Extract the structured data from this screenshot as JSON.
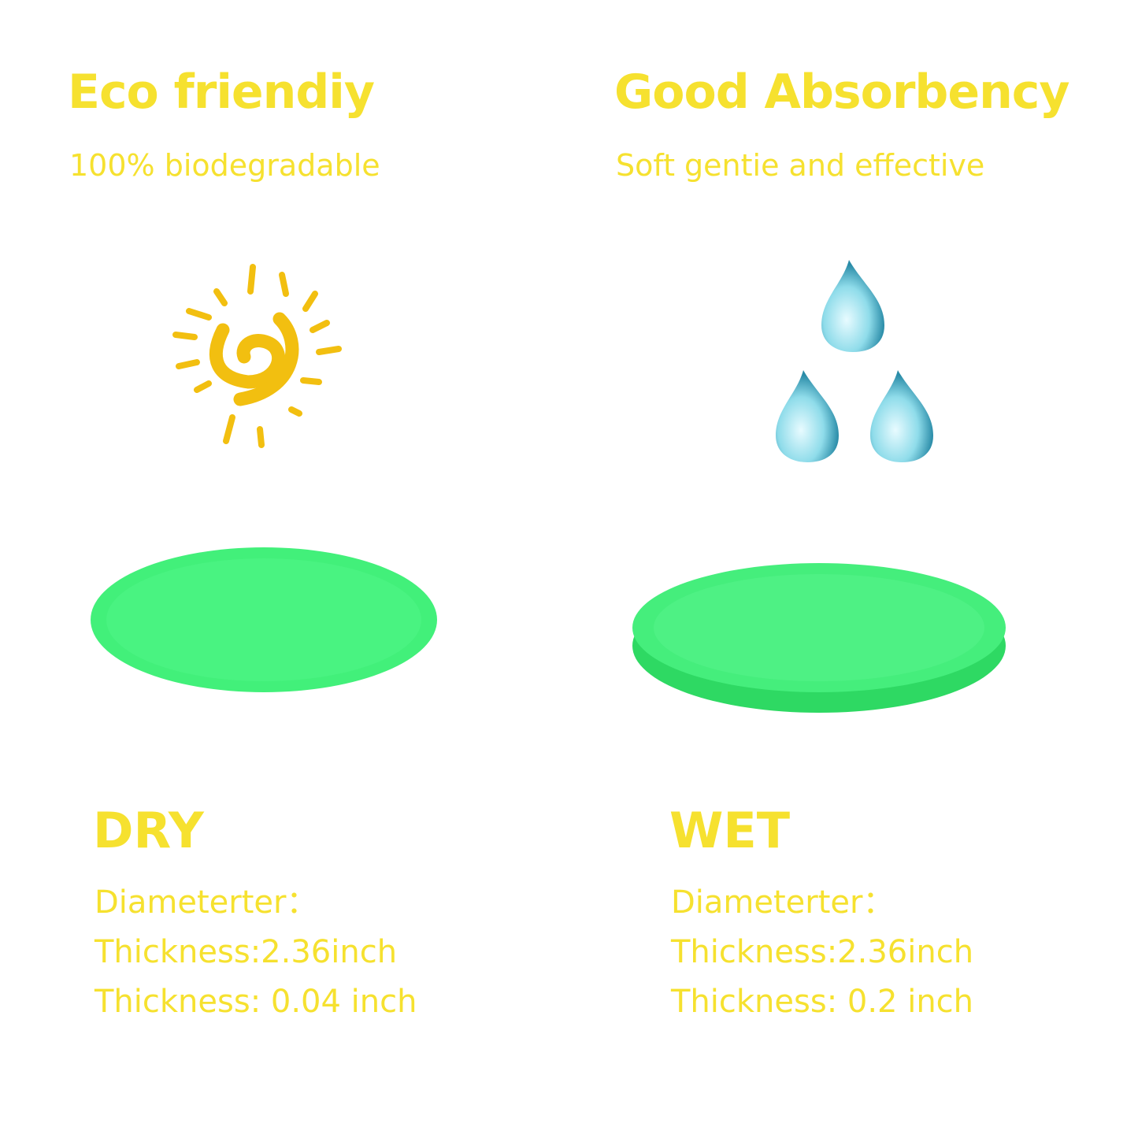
{
  "left": {
    "title": "Eco friendiy",
    "subtitle": "100% biodegradable",
    "icon": "sun-icon",
    "state": "DRY",
    "specs": [
      "Diameterter：",
      "Thickness:2.36inch",
      "Thickness: 0.04 inch"
    ]
  },
  "right": {
    "title": "Good Absorbency",
    "subtitle": "Soft gentie and effective",
    "icon": "water-drops-icon",
    "state": "WET",
    "specs": [
      "Diameterter：",
      "Thickness:2.36inch",
      "Thickness: 0.2 inch"
    ]
  },
  "colors": {
    "text": "#f6e12f",
    "sun": "#f2bf10",
    "sponge": "#3ff27a",
    "drop": "#5cc8dc"
  }
}
